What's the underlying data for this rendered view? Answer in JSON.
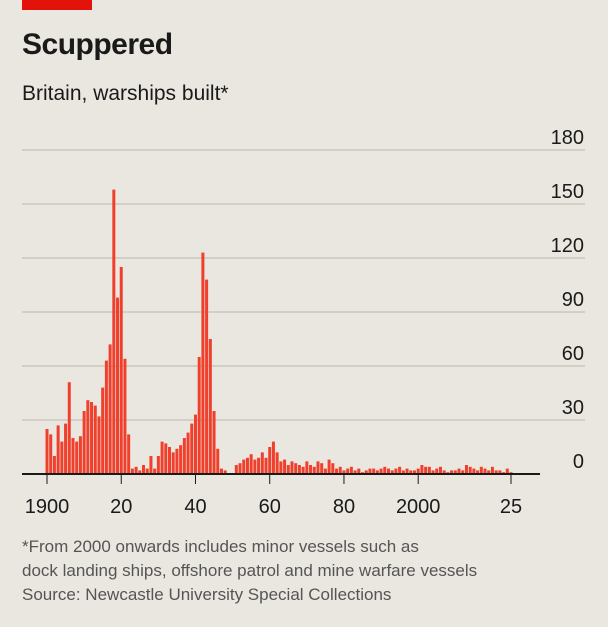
{
  "header": {
    "title": "Scuppered",
    "subtitle": "Britain, warships built*"
  },
  "footer": {
    "note_line1": "*From 2000 onwards includes minor vessels such as",
    "note_line2": "dock landing ships, offshore patrol and mine warfare vessels",
    "source": "Source: Newcastle University Special Collections"
  },
  "colors": {
    "bar": "#f0402d",
    "grid": "#b9b7ae",
    "axis": "#1a1a1a",
    "brand_red": "#e3120b",
    "background": "#e9e7df"
  },
  "chart_data": {
    "type": "bar",
    "title": "Britain, warships built*",
    "xlabel": "",
    "ylabel": "",
    "ylim": [
      0,
      180
    ],
    "yticks": [
      0,
      30,
      60,
      90,
      120,
      150,
      180
    ],
    "y_axis_position": "right",
    "grid": true,
    "xticks": [
      {
        "year": 1900,
        "label": "1900"
      },
      {
        "year": 1920,
        "label": "20"
      },
      {
        "year": 1940,
        "label": "40"
      },
      {
        "year": 1960,
        "label": "60"
      },
      {
        "year": 1980,
        "label": "80"
      },
      {
        "year": 2000,
        "label": "2000"
      },
      {
        "year": 2025,
        "label": "25"
      }
    ],
    "categories": [
      1900,
      1901,
      1902,
      1903,
      1904,
      1905,
      1906,
      1907,
      1908,
      1909,
      1910,
      1911,
      1912,
      1913,
      1914,
      1915,
      1916,
      1917,
      1918,
      1919,
      1920,
      1921,
      1922,
      1923,
      1924,
      1925,
      1926,
      1927,
      1928,
      1929,
      1930,
      1931,
      1932,
      1933,
      1934,
      1935,
      1936,
      1937,
      1938,
      1939,
      1940,
      1941,
      1942,
      1943,
      1944,
      1945,
      1946,
      1947,
      1948,
      1949,
      1950,
      1951,
      1952,
      1953,
      1954,
      1955,
      1956,
      1957,
      1958,
      1959,
      1960,
      1961,
      1962,
      1963,
      1964,
      1965,
      1966,
      1967,
      1968,
      1969,
      1970,
      1971,
      1972,
      1973,
      1974,
      1975,
      1976,
      1977,
      1978,
      1979,
      1980,
      1981,
      1982,
      1983,
      1984,
      1985,
      1986,
      1987,
      1988,
      1989,
      1990,
      1991,
      1992,
      1993,
      1994,
      1995,
      1996,
      1997,
      1998,
      1999,
      2000,
      2001,
      2002,
      2003,
      2004,
      2005,
      2006,
      2007,
      2008,
      2009,
      2010,
      2011,
      2012,
      2013,
      2014,
      2015,
      2016,
      2017,
      2018,
      2019,
      2020,
      2021,
      2022,
      2023,
      2024,
      2025,
      2026
    ],
    "values": [
      25,
      22,
      10,
      27,
      18,
      28,
      51,
      20,
      18,
      21,
      35,
      41,
      40,
      38,
      32,
      48,
      63,
      72,
      158,
      98,
      115,
      64,
      22,
      3,
      4,
      2,
      5,
      3,
      10,
      3,
      10,
      18,
      17,
      15,
      12,
      14,
      16,
      20,
      23,
      28,
      33,
      65,
      123,
      108,
      75,
      35,
      14,
      3,
      2,
      0,
      0,
      5,
      6,
      8,
      9,
      11,
      8,
      9,
      12,
      9,
      15,
      18,
      12,
      7,
      8,
      5,
      7,
      6,
      5,
      4,
      7,
      5,
      4,
      7,
      6,
      3,
      8,
      6,
      3,
      4,
      2,
      3,
      4,
      2,
      3,
      1,
      2,
      3,
      3,
      2,
      3,
      4,
      3,
      2,
      3,
      4,
      2,
      3,
      2,
      2,
      3,
      5,
      4,
      4,
      2,
      3,
      4,
      2,
      1,
      2,
      2,
      3,
      2,
      5,
      4,
      3,
      2,
      4,
      3,
      2,
      4,
      2,
      2,
      1,
      3,
      1,
      0
    ]
  }
}
